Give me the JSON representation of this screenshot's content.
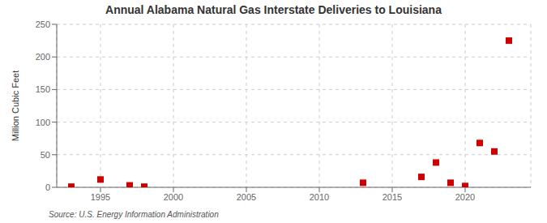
{
  "chart_data": {
    "type": "scatter",
    "title": "Annual Alabama Natural Gas Interstate Deliveries to Louisiana",
    "y_label": "Million Cubic Feet",
    "source": "Source: U.S. Energy Information Administration",
    "x": [
      1993,
      1995,
      1997,
      1998,
      2013,
      2017,
      2018,
      2019,
      2020,
      2021,
      2022,
      2023
    ],
    "values": [
      1,
      12,
      3,
      1,
      7,
      16,
      38,
      7,
      2,
      68,
      55,
      225
    ],
    "color": "#cc0000",
    "marker": "square",
    "xlim": [
      1992,
      2024.5
    ],
    "ylim": [
      0,
      250
    ],
    "xticks": [
      1995,
      2000,
      2005,
      2010,
      2015,
      2020
    ],
    "yticks": [
      0,
      50,
      100,
      150,
      200,
      250
    ],
    "grid": true
  }
}
